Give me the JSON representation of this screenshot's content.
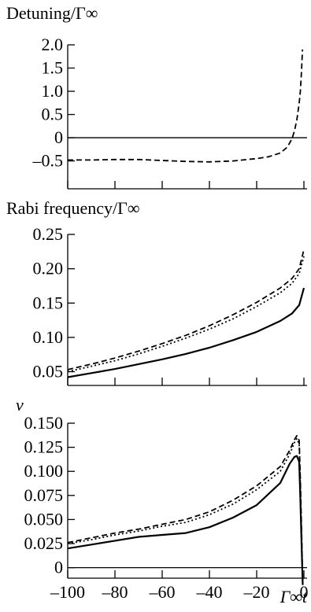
{
  "chart_data": [
    {
      "type": "line",
      "title": "",
      "ylabel": "Detuning/Γ∞",
      "xlabel": "",
      "xlim": [
        -100,
        0
      ],
      "ylim": [
        -1.1,
        2.0
      ],
      "yticks": [
        {
          "value": 2.0,
          "label": "2.0"
        },
        {
          "value": 1.5,
          "label": "1.5"
        },
        {
          "value": 1.0,
          "label": "1.0"
        },
        {
          "value": 0.5,
          "label": "0.5"
        },
        {
          "value": 0,
          "label": "0"
        },
        {
          "value": -0.5,
          "label": "–0.5"
        }
      ],
      "xticks": [
        -100,
        -80,
        -60,
        -40,
        -20,
        0
      ],
      "xtick_labels_shown": false,
      "zero_line": true,
      "series": [
        {
          "style": "dashed",
          "x": [
            -100,
            -90,
            -80,
            -70,
            -60,
            -50,
            -40,
            -30,
            -20,
            -15,
            -10,
            -7,
            -5,
            -4,
            -3,
            -2,
            -1.5,
            -1,
            -0.6
          ],
          "y": [
            -0.48,
            -0.48,
            -0.47,
            -0.47,
            -0.49,
            -0.51,
            -0.52,
            -0.5,
            -0.45,
            -0.41,
            -0.33,
            -0.2,
            -0.02,
            0.15,
            0.38,
            0.75,
            1.0,
            1.45,
            1.9
          ]
        }
      ]
    },
    {
      "type": "line",
      "title": "",
      "ylabel": "Rabi frequency/Γ∞",
      "xlabel": "",
      "xlim": [
        -100,
        0
      ],
      "ylim": [
        0.03,
        0.25
      ],
      "yticks": [
        {
          "value": 0.25,
          "label": "0.25"
        },
        {
          "value": 0.2,
          "label": "0.20"
        },
        {
          "value": 0.15,
          "label": "0.15"
        },
        {
          "value": 0.1,
          "label": "0.10"
        },
        {
          "value": 0.05,
          "label": "0.05"
        }
      ],
      "xticks": [
        -100,
        -80,
        -60,
        -40,
        -20,
        0
      ],
      "xtick_labels_shown": false,
      "zero_line": false,
      "series": [
        {
          "style": "dashed",
          "x": [
            -100,
            -90,
            -80,
            -70,
            -60,
            -50,
            -40,
            -30,
            -20,
            -10,
            -5,
            -2,
            0
          ],
          "y": [
            0.053,
            0.061,
            0.07,
            0.08,
            0.091,
            0.103,
            0.117,
            0.133,
            0.151,
            0.172,
            0.186,
            0.2,
            0.228
          ]
        },
        {
          "style": "dotted",
          "x": [
            -100,
            -90,
            -80,
            -70,
            -60,
            -50,
            -40,
            -30,
            -20,
            -10,
            -5,
            -2,
            0
          ],
          "y": [
            0.05,
            0.058,
            0.066,
            0.076,
            0.087,
            0.099,
            0.112,
            0.127,
            0.145,
            0.165,
            0.179,
            0.193,
            0.218
          ]
        },
        {
          "style": "solid",
          "x": [
            -100,
            -90,
            -80,
            -70,
            -60,
            -50,
            -40,
            -30,
            -20,
            -10,
            -5,
            -2,
            0
          ],
          "y": [
            0.042,
            0.048,
            0.054,
            0.061,
            0.068,
            0.076,
            0.085,
            0.096,
            0.108,
            0.124,
            0.135,
            0.147,
            0.172
          ]
        }
      ]
    },
    {
      "type": "line",
      "title": "",
      "ylabel": "v",
      "xlabel": "Γ∞t",
      "xlim": [
        -100,
        0
      ],
      "ylim": [
        -0.015,
        0.15
      ],
      "yticks": [
        {
          "value": 0.15,
          "label": "0.150"
        },
        {
          "value": 0.125,
          "label": "0.125"
        },
        {
          "value": 0.1,
          "label": "0.100"
        },
        {
          "value": 0.075,
          "label": "0.075"
        },
        {
          "value": 0.05,
          "label": "0.050"
        },
        {
          "value": 0.025,
          "label": "0.025"
        },
        {
          "value": 0,
          "label": "0"
        }
      ],
      "xticks": [
        -100,
        -80,
        -60,
        -40,
        -20,
        0
      ],
      "xtick_labels": [
        "–100",
        "–80",
        "–60",
        "–40",
        "–20",
        "0"
      ],
      "xtick_labels_shown": true,
      "zero_line": true,
      "series": [
        {
          "style": "dashed",
          "x": [
            -100,
            -90,
            -80,
            -70,
            -60,
            -50,
            -40,
            -30,
            -20,
            -10,
            -6,
            -4,
            -3,
            -2,
            -1.5,
            -1,
            -0.5
          ],
          "y": [
            0.026,
            0.031,
            0.036,
            0.04,
            0.045,
            0.05,
            0.058,
            0.07,
            0.085,
            0.105,
            0.122,
            0.133,
            0.137,
            0.132,
            0.09,
            0.04,
            -0.018
          ]
        },
        {
          "style": "dotted",
          "x": [
            -100,
            -90,
            -80,
            -70,
            -60,
            -50,
            -40,
            -30,
            -20,
            -10,
            -6,
            -4,
            -3,
            -2,
            -1.5,
            -1,
            -0.5
          ],
          "y": [
            0.025,
            0.029,
            0.034,
            0.038,
            0.043,
            0.047,
            0.055,
            0.066,
            0.081,
            0.1,
            0.118,
            0.13,
            0.134,
            0.128,
            0.085,
            0.035,
            -0.018
          ]
        },
        {
          "style": "solid",
          "x": [
            -100,
            -90,
            -80,
            -70,
            -60,
            -50,
            -40,
            -30,
            -20,
            -10,
            -6,
            -4,
            -3,
            -2,
            -1.5,
            -1,
            -0.5
          ],
          "y": [
            0.02,
            0.024,
            0.028,
            0.032,
            0.034,
            0.036,
            0.042,
            0.052,
            0.065,
            0.088,
            0.108,
            0.115,
            0.116,
            0.11,
            0.07,
            0.025,
            -0.018
          ]
        }
      ]
    }
  ]
}
